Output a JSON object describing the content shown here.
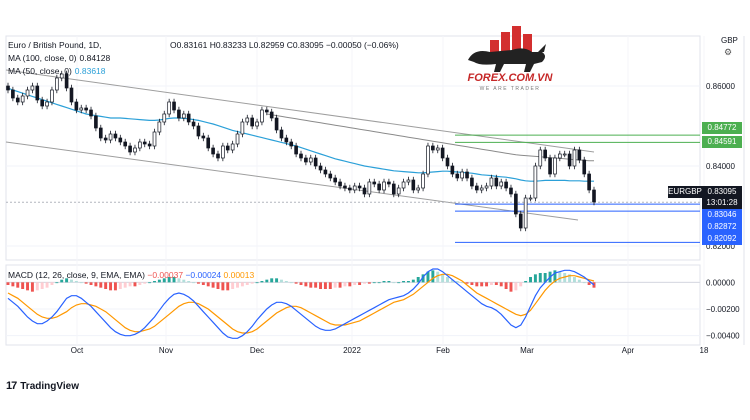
{
  "header": {
    "symbol": "Euro / British Pound, 1D,",
    "ohlc": "O0.83161 H0.83233 L0.82959 C0.83095 −0.00050 (−0.06%)",
    "ma100_label": "MA (100, close, 0)",
    "ma100_value": "0.84128",
    "ma50_label": "MA (50, close, 0)",
    "ma50_value": "0.83618"
  },
  "macd_legend": {
    "label": "MACD (12, 26, close, 9, EMA, EMA)",
    "hist": "−0.00037",
    "macd": "−0.00024",
    "signal": "0.00013"
  },
  "logo": {
    "brand": "FOREX.COM.VN",
    "tagline": "WE ARE TRADER"
  },
  "footer": {
    "brand": "TradingView",
    "mark": "17"
  },
  "currency": "GBP",
  "tags": {
    "level_1": "0.84772",
    "level_2": "0.84591",
    "price": "0.83095",
    "time": "13:01:28",
    "symbol": "EURGBP",
    "level_3": "0.83046",
    "level_4": "0.82872",
    "level_5": "0.82092"
  },
  "colors": {
    "up": "#26a69a",
    "down": "#ef5350",
    "candle": "#131722",
    "ma50": "#2ba0d8",
    "ma100": "#8a8a8a",
    "channel": "#9e9e9e",
    "green_tag": "#4caf50",
    "blue_tag": "#2962ff",
    "macd": "#2962ff",
    "signal": "#ff9800"
  },
  "chart_data": [
    {
      "type": "candlestick",
      "title": "Euro / British Pound, 1D",
      "y_axis_ticks": [
        0.86,
        0.84,
        0.82
      ],
      "y_axis_tick_labels": [
        "0.86000",
        "0.84000",
        "0.82000"
      ],
      "x_axis_labels": [
        "Oct",
        "Nov",
        "Dec",
        "2022",
        "Feb",
        "Mar",
        "Apr",
        "18"
      ],
      "ylim": [
        0.8165,
        0.8725
      ],
      "close_series": [
        0.859,
        0.857,
        0.856,
        0.8575,
        0.859,
        0.86,
        0.8565,
        0.855,
        0.856,
        0.859,
        0.862,
        0.863,
        0.8595,
        0.856,
        0.854,
        0.8545,
        0.854,
        0.8525,
        0.8495,
        0.847,
        0.8465,
        0.848,
        0.847,
        0.846,
        0.845,
        0.8435,
        0.8445,
        0.846,
        0.8455,
        0.845,
        0.8485,
        0.851,
        0.853,
        0.856,
        0.854,
        0.852,
        0.853,
        0.851,
        0.85,
        0.8475,
        0.847,
        0.8445,
        0.843,
        0.842,
        0.845,
        0.844,
        0.8455,
        0.848,
        0.851,
        0.852,
        0.85,
        0.851,
        0.854,
        0.8535,
        0.852,
        0.849,
        0.847,
        0.846,
        0.845,
        0.843,
        0.842,
        0.841,
        0.842,
        0.84,
        0.839,
        0.838,
        0.837,
        0.836,
        0.835,
        0.8345,
        0.834,
        0.835,
        0.8345,
        0.833,
        0.836,
        0.8355,
        0.834,
        0.836,
        0.8355,
        0.833,
        0.8345,
        0.836,
        0.8365,
        0.834,
        0.8345,
        0.838,
        0.845,
        0.844,
        0.8445,
        0.842,
        0.84,
        0.838,
        0.837,
        0.8385,
        0.837,
        0.835,
        0.834,
        0.8345,
        0.835,
        0.837,
        0.835,
        0.836,
        0.8345,
        0.833,
        0.828,
        0.8245,
        0.832,
        0.832,
        0.84,
        0.844,
        0.842,
        0.838,
        0.842,
        0.843,
        0.843,
        0.84,
        0.844,
        0.8415,
        0.838,
        0.834,
        0.831
      ],
      "ma50": [
        0.8595,
        0.859,
        0.8586,
        0.8582,
        0.8578,
        0.8574,
        0.857,
        0.8566,
        0.8562,
        0.8558,
        0.8554,
        0.855,
        0.8546,
        0.8542,
        0.8538,
        0.8534,
        0.853,
        0.8528,
        0.8526,
        0.8524,
        0.8522,
        0.852,
        0.852,
        0.852,
        0.8519,
        0.8518,
        0.8517,
        0.8516,
        0.8515,
        0.8514,
        0.8514,
        0.8515,
        0.8517,
        0.8519,
        0.852,
        0.852,
        0.8519,
        0.8518,
        0.8516,
        0.8514,
        0.8511,
        0.8508,
        0.8505,
        0.8501,
        0.8497,
        0.8493,
        0.8489,
        0.8486,
        0.8483,
        0.848,
        0.8477,
        0.8474,
        0.8471,
        0.8468,
        0.8465,
        0.8462,
        0.8459,
        0.8456,
        0.8453,
        0.845,
        0.8446,
        0.8442,
        0.8438,
        0.8434,
        0.843,
        0.8426,
        0.8422,
        0.8418,
        0.8415,
        0.8412,
        0.8409,
        0.8406,
        0.8403,
        0.84,
        0.8398,
        0.8396,
        0.8394,
        0.8392,
        0.839,
        0.8388,
        0.8387,
        0.8386,
        0.8385,
        0.8384,
        0.8383,
        0.8383,
        0.8384,
        0.8385,
        0.8386,
        0.8387,
        0.8387,
        0.8386,
        0.8385,
        0.8384,
        0.8383,
        0.8382,
        0.838,
        0.8378,
        0.8377,
        0.8376,
        0.8374,
        0.8373,
        0.8372,
        0.837,
        0.8368,
        0.8365,
        0.8363,
        0.8362,
        0.8362,
        0.8363,
        0.8364,
        0.8364,
        0.8364,
        0.8364,
        0.8364,
        0.8363,
        0.8363,
        0.8363,
        0.8362,
        0.8362,
        0.8362
      ],
      "ma100": [
        null,
        null,
        null,
        null,
        null,
        null,
        null,
        null,
        null,
        null,
        null,
        null,
        null,
        null,
        null,
        null,
        null,
        null,
        null,
        null,
        null,
        null,
        null,
        null,
        null,
        null,
        null,
        null,
        null,
        null,
        null,
        null,
        null,
        null,
        null,
        null,
        null,
        null,
        null,
        null,
        null,
        null,
        null,
        null,
        null,
        null,
        null,
        null,
        null,
        null,
        null,
        null,
        null,
        0.853,
        0.8528,
        0.8526,
        0.8524,
        0.8522,
        0.852,
        0.8518,
        0.8516,
        0.8514,
        0.8512,
        0.851,
        0.8508,
        0.8506,
        0.8504,
        0.8502,
        0.85,
        0.8498,
        0.8496,
        0.8494,
        0.8492,
        0.849,
        0.8488,
        0.8486,
        0.8484,
        0.8482,
        0.848,
        0.8478,
        0.8476,
        0.8474,
        0.8472,
        0.847,
        0.8468,
        0.8466,
        0.8464,
        0.8462,
        0.846,
        0.8458,
        0.8456,
        0.8454,
        0.8452,
        0.845,
        0.8448,
        0.8446,
        0.8444,
        0.8442,
        0.844,
        0.8438,
        0.8436,
        0.8434,
        0.8432,
        0.843,
        0.8428,
        0.8427,
        0.8426,
        0.8425,
        0.8424,
        0.8423,
        0.8422,
        0.8421,
        0.842,
        0.8419,
        0.8418,
        0.8417,
        0.8416,
        0.8415,
        0.8414,
        0.8413,
        0.8413
      ]
    },
    {
      "type": "bar",
      "title": "MACD (12, 26, close, 9, EMA, EMA)",
      "y_axis_ticks": [
        0.0,
        -0.002,
        -0.004
      ],
      "y_axis_tick_labels": [
        "0.00000",
        "−0.00200",
        "−0.00400"
      ],
      "ylim": [
        -0.0047,
        0.0013
      ],
      "histogram": [
        -0.0002,
        -0.0003,
        -0.0004,
        -0.0005,
        -0.0006,
        -0.0007,
        -0.0006,
        -0.0005,
        -0.0004,
        -0.0002,
        0.0,
        0.0002,
        0.0003,
        0.0002,
        0.0001,
        0.0,
        -0.0001,
        -0.0002,
        -0.0003,
        -0.0004,
        -0.0005,
        -0.0006,
        -0.0006,
        -0.0005,
        -0.0004,
        -0.0003,
        -0.0003,
        -0.0002,
        -0.0001,
        0.0,
        0.0001,
        0.0002,
        0.0003,
        0.0004,
        0.0004,
        0.0003,
        0.0002,
        0.0001,
        0.0,
        -0.0001,
        -0.0002,
        -0.0003,
        -0.0004,
        -0.0005,
        -0.0006,
        -0.0006,
        -0.0005,
        -0.0004,
        -0.0003,
        -0.0002,
        -0.0001,
        0.0,
        0.0001,
        0.0002,
        0.0003,
        0.0003,
        0.0002,
        0.0001,
        0.0,
        -0.0001,
        -0.0002,
        -0.0003,
        -0.0004,
        -0.0004,
        -0.0005,
        -0.0005,
        -0.0005,
        -0.0004,
        -0.0004,
        -0.0003,
        -0.0003,
        -0.0002,
        -0.0002,
        -0.0001,
        -0.0001,
        0.0,
        0.0,
        0.0001,
        0.0001,
        0.0,
        0.0,
        0.0001,
        0.0001,
        0.0002,
        0.0004,
        0.0006,
        0.0008,
        0.0009,
        0.0008,
        0.0006,
        0.0004,
        0.0002,
        0.0001,
        0.0,
        -0.0001,
        -0.0002,
        -0.0003,
        -0.0003,
        -0.0003,
        -0.0002,
        -0.0002,
        -0.0003,
        -0.0005,
        -0.0007,
        -0.0006,
        -0.0003,
        0.0001,
        0.0004,
        0.0006,
        0.0007,
        0.0007,
        0.0008,
        0.0009,
        0.0008,
        0.0007,
        0.0006,
        0.0004,
        0.0002,
        0.0,
        -0.0002,
        -0.0004
      ],
      "macd": [
        -0.0012,
        -0.0015,
        -0.0018,
        -0.0022,
        -0.0026,
        -0.0029,
        -0.0031,
        -0.0031,
        -0.0029,
        -0.0026,
        -0.0022,
        -0.0017,
        -0.0012,
        -0.001,
        -0.001,
        -0.0012,
        -0.0015,
        -0.0018,
        -0.0022,
        -0.0026,
        -0.003,
        -0.0034,
        -0.0037,
        -0.0039,
        -0.004,
        -0.004,
        -0.0039,
        -0.0037,
        -0.0034,
        -0.003,
        -0.0026,
        -0.0021,
        -0.0016,
        -0.0012,
        -0.0009,
        -0.0008,
        -0.0009,
        -0.0011,
        -0.0014,
        -0.0018,
        -0.0022,
        -0.0026,
        -0.003,
        -0.0034,
        -0.0038,
        -0.0041,
        -0.0042,
        -0.0042,
        -0.004,
        -0.0037,
        -0.0033,
        -0.0028,
        -0.0024,
        -0.002,
        -0.0017,
        -0.0015,
        -0.0015,
        -0.0016,
        -0.0018,
        -0.0021,
        -0.0024,
        -0.0027,
        -0.003,
        -0.0033,
        -0.0035,
        -0.0036,
        -0.0036,
        -0.0035,
        -0.0033,
        -0.0031,
        -0.0029,
        -0.0027,
        -0.0025,
        -0.0023,
        -0.0021,
        -0.0019,
        -0.0017,
        -0.0015,
        -0.0013,
        -0.0012,
        -0.0011,
        -0.001,
        -0.0008,
        -0.0005,
        -0.0001,
        0.0004,
        0.0008,
        0.001,
        0.001,
        0.0008,
        0.0005,
        0.0002,
        -0.0001,
        -0.0004,
        -0.0007,
        -0.001,
        -0.0013,
        -0.0016,
        -0.0018,
        -0.0019,
        -0.0021,
        -0.0024,
        -0.0028,
        -0.0032,
        -0.0034,
        -0.0032,
        -0.0026,
        -0.0018,
        -0.001,
        -0.0004,
        0.0,
        0.0004,
        0.0007,
        0.0008,
        0.0009,
        0.0009,
        0.0008,
        0.0006,
        0.0004,
        0.0001,
        -0.0002
      ],
      "signal": [
        -0.0008,
        -0.001,
        -0.0012,
        -0.0015,
        -0.0018,
        -0.0021,
        -0.0024,
        -0.0026,
        -0.0027,
        -0.0027,
        -0.0026,
        -0.0024,
        -0.0022,
        -0.0019,
        -0.0017,
        -0.0016,
        -0.0016,
        -0.0017,
        -0.0018,
        -0.002,
        -0.0022,
        -0.0025,
        -0.0028,
        -0.0031,
        -0.0034,
        -0.0036,
        -0.0037,
        -0.0037,
        -0.0036,
        -0.0035,
        -0.0033,
        -0.003,
        -0.0027,
        -0.0024,
        -0.0021,
        -0.0018,
        -0.0016,
        -0.0015,
        -0.0015,
        -0.0016,
        -0.0018,
        -0.002,
        -0.0023,
        -0.0026,
        -0.0029,
        -0.0032,
        -0.0035,
        -0.0037,
        -0.0038,
        -0.0038,
        -0.0037,
        -0.0035,
        -0.0032,
        -0.0029,
        -0.0026,
        -0.0023,
        -0.0021,
        -0.0019,
        -0.0018,
        -0.0018,
        -0.0019,
        -0.0021,
        -0.0023,
        -0.0025,
        -0.0027,
        -0.0029,
        -0.0031,
        -0.0032,
        -0.0032,
        -0.0032,
        -0.0031,
        -0.003,
        -0.0029,
        -0.0027,
        -0.0025,
        -0.0023,
        -0.0021,
        -0.0019,
        -0.0017,
        -0.0015,
        -0.0014,
        -0.0013,
        -0.0011,
        -0.0009,
        -0.0006,
        -0.0003,
        0.0,
        0.0003,
        0.0005,
        0.0006,
        0.0006,
        0.0005,
        0.0003,
        0.0001,
        -0.0002,
        -0.0005,
        -0.0008,
        -0.001,
        -0.0012,
        -0.0014,
        -0.0016,
        -0.0018,
        -0.002,
        -0.0022,
        -0.0024,
        -0.0025,
        -0.0024,
        -0.0021,
        -0.0016,
        -0.0011,
        -0.0006,
        -0.0002,
        0.0001,
        0.0003,
        0.0004,
        0.0005,
        0.0005,
        0.0004,
        0.0003,
        0.0002,
        0.0001
      ]
    }
  ]
}
